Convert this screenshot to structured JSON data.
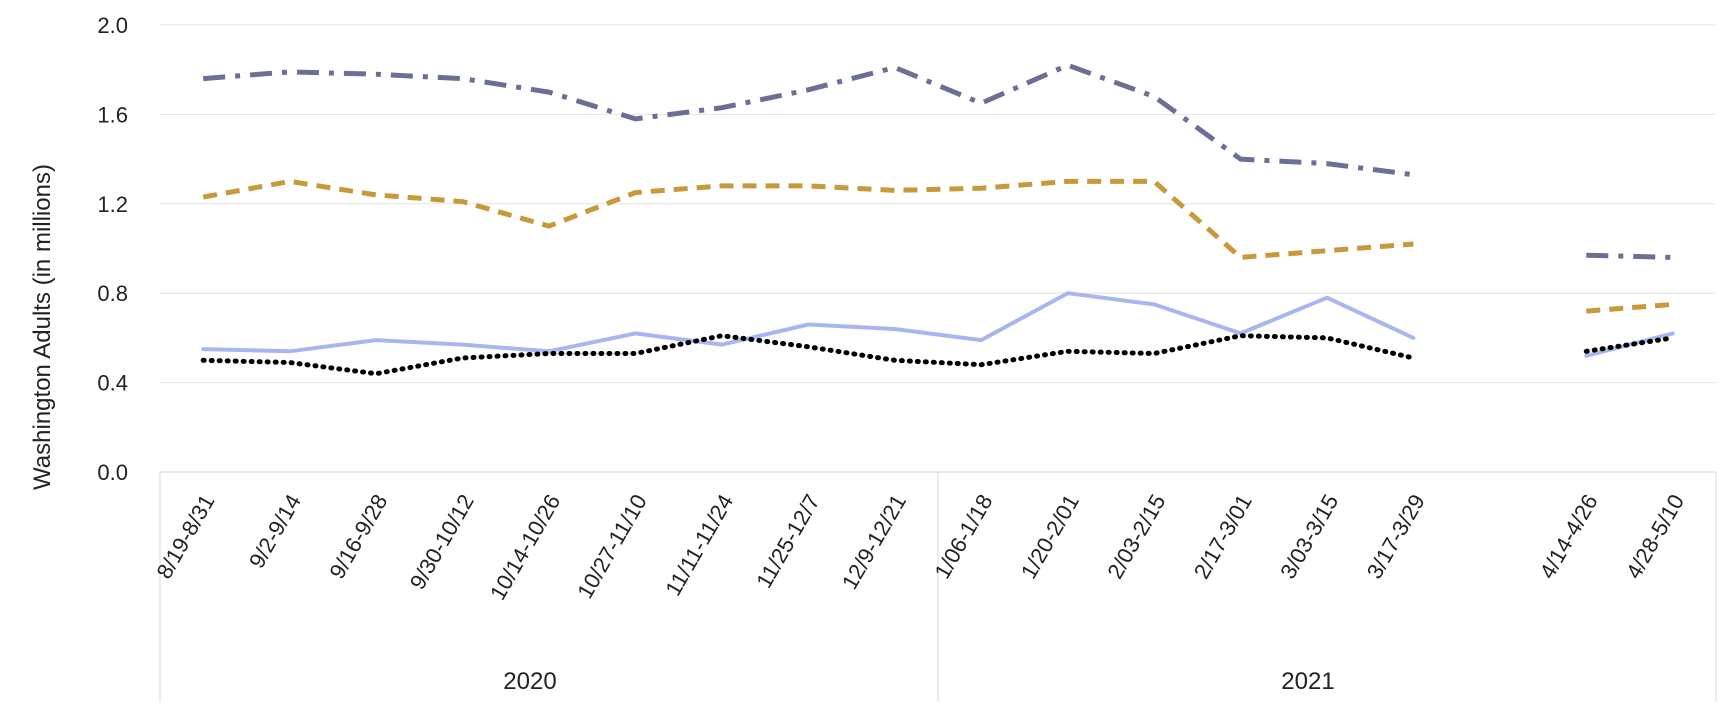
{
  "chart_data": {
    "type": "line",
    "ylabel": "Washington Adults (in millions)",
    "ylim": [
      0,
      2.0
    ],
    "yticks": [
      "0.0",
      "0.4",
      "0.8",
      "1.2",
      "1.6",
      "2.0"
    ],
    "grid": true,
    "groups": [
      {
        "label": "2020",
        "categories": [
          "8/19-8/31",
          "9/2-9/14",
          "9/16-9/28",
          "9/30-10/12",
          "10/14-10/26",
          "10/27-11/10",
          "11/11-11/24",
          "11/25-12/7",
          "12/9-12/21"
        ]
      },
      {
        "label": "2021",
        "categories": [
          "1/06-1/18",
          "1/20-2/01",
          "2/03-2/15",
          "2/17-3/01",
          "3/03-3/15",
          "3/17-3/29",
          "",
          "4/14-4/26",
          "4/28-5/10"
        ]
      }
    ],
    "series": [
      {
        "color": "#6b6f96",
        "style": "dashdot",
        "values": [
          1.76,
          1.79,
          1.78,
          1.76,
          1.7,
          1.58,
          1.63,
          1.71,
          1.81,
          1.65,
          1.82,
          1.68,
          1.4,
          1.38,
          1.33,
          null,
          0.97,
          0.96
        ]
      },
      {
        "color": "#c8993a",
        "style": "dashed",
        "values": [
          1.23,
          1.3,
          1.24,
          1.21,
          1.1,
          1.25,
          1.28,
          1.28,
          1.26,
          1.27,
          1.3,
          1.3,
          0.96,
          0.99,
          1.02,
          null,
          0.72,
          0.75
        ]
      },
      {
        "color": "#a8b6f0",
        "style": "solid",
        "values": [
          0.55,
          0.54,
          0.59,
          0.57,
          0.54,
          0.62,
          0.57,
          0.66,
          0.64,
          0.59,
          0.8,
          0.75,
          0.62,
          0.78,
          0.6,
          null,
          0.52,
          0.62
        ]
      },
      {
        "color": "#000000",
        "style": "dotted",
        "values": [
          0.5,
          0.49,
          0.44,
          0.51,
          0.53,
          0.53,
          0.61,
          0.56,
          0.5,
          0.48,
          0.54,
          0.53,
          0.61,
          0.6,
          0.51,
          null,
          0.54,
          0.6
        ]
      }
    ]
  }
}
